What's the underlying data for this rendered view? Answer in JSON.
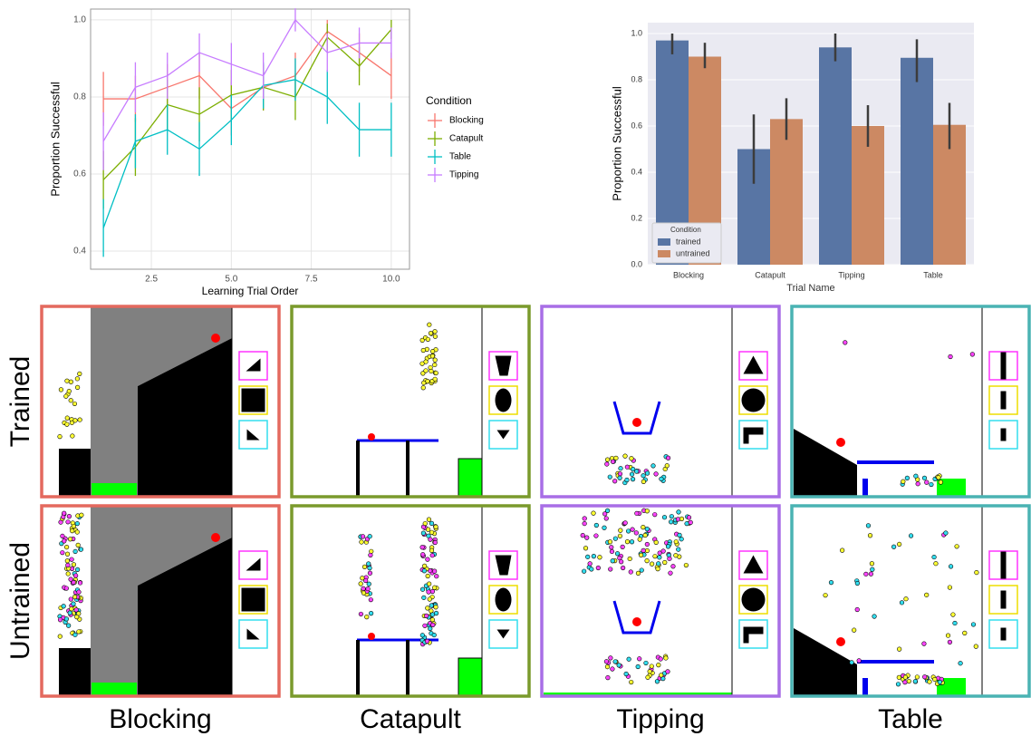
{
  "chart_data": [
    {
      "type": "line",
      "x_label": "Learning Trial Order",
      "y_label": "Proportion Successful",
      "legend_title": "Condition",
      "x": [
        1,
        2,
        3,
        4,
        5,
        6,
        7,
        8,
        9,
        10
      ],
      "series": [
        {
          "name": "Blocking",
          "color": "#f8766d",
          "values": [
            0.795,
            0.795,
            0.825,
            0.855,
            0.77,
            0.825,
            0.855,
            0.97,
            0.915,
            0.855
          ],
          "errors": [
            0.07,
            0.06,
            0.06,
            0.06,
            0.07,
            0.06,
            0.06,
            0.03,
            0.05,
            0.06
          ]
        },
        {
          "name": "Catapult",
          "color": "#7cae00",
          "values": [
            0.585,
            0.67,
            0.78,
            0.755,
            0.805,
            0.825,
            0.8,
            0.955,
            0.88,
            0.975
          ],
          "errors": [
            0.075,
            0.075,
            0.065,
            0.07,
            0.065,
            0.06,
            0.06,
            0.035,
            0.05,
            0.025
          ]
        },
        {
          "name": "Table",
          "color": "#00bfc4",
          "values": [
            0.46,
            0.685,
            0.715,
            0.665,
            0.74,
            0.83,
            0.845,
            0.8,
            0.715,
            0.715
          ],
          "errors": [
            0.075,
            0.07,
            0.065,
            0.07,
            0.065,
            0.06,
            0.055,
            0.07,
            0.07,
            0.07
          ]
        },
        {
          "name": "Tipping",
          "color": "#c77cff",
          "values": [
            0.685,
            0.825,
            0.855,
            0.915,
            0.885,
            0.855,
            1.0,
            0.915,
            0.94,
            0.94
          ],
          "errors": [
            0.075,
            0.065,
            0.06,
            0.05,
            0.055,
            0.06,
            0.03,
            0.05,
            0.04,
            0.04
          ]
        }
      ],
      "xlim": [
        0.6,
        10.57
      ],
      "ylim": [
        0.353,
        1.028
      ],
      "xticks": [
        2.5,
        {
          "value": 5,
          "label": "5.0"
        },
        7.5,
        {
          "value": 10,
          "label": "10.0"
        }
      ],
      "yticks": [
        0.4,
        0.6,
        0.8,
        {
          "value": 1,
          "label": "1.0"
        }
      ],
      "grid": true,
      "legend": "right"
    },
    {
      "type": "bar",
      "x_label": "Trial Name",
      "y_label": "Proportion Successful",
      "legend_title": "Condition",
      "categories": [
        "Blocking",
        "Catapult",
        "Tipping",
        "Table"
      ],
      "series": [
        {
          "name": "trained",
          "color": "#5875a4",
          "values": [
            0.97,
            0.5,
            0.94,
            0.895
          ],
          "ci_low": [
            0.91,
            0.35,
            0.88,
            0.79
          ],
          "ci_high": [
            1.0,
            0.65,
            1.0,
            0.975
          ]
        },
        {
          "name": "untrained",
          "color": "#cc8963",
          "values": [
            0.9,
            0.63,
            0.6,
            0.605
          ],
          "ci_low": [
            0.85,
            0.54,
            0.51,
            0.5
          ],
          "ci_high": [
            0.96,
            0.72,
            0.69,
            0.7
          ]
        }
      ],
      "ylim": [
        0,
        1.047
      ],
      "yticks": [
        {
          "value": 0,
          "label": "0.0"
        },
        {
          "value": 0.2,
          "label": "0.2"
        },
        {
          "value": 0.4,
          "label": "0.4"
        },
        {
          "value": 0.6,
          "label": "0.6"
        },
        {
          "value": 0.8,
          "label": "0.8"
        },
        {
          "value": 1,
          "label": "1.0"
        }
      ],
      "grid": true,
      "legend": "lower left"
    }
  ],
  "panels": {
    "rows": [
      "Trained",
      "Untrained"
    ],
    "columns": [
      "Blocking",
      "Catapult",
      "Tipping",
      "Table"
    ]
  }
}
